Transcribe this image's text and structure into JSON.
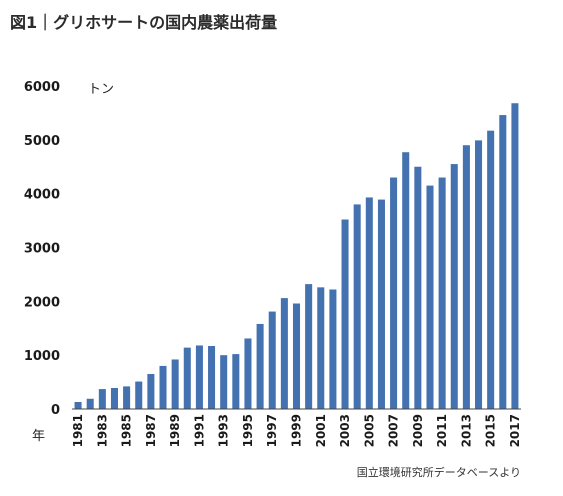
{
  "chart_data": {
    "type": "bar",
    "title": "図1｜グリホサートの国内農薬出荷量",
    "ylabel": "トン",
    "xlabel": "年",
    "source": "国立環境研究所データベースより",
    "ylim": [
      0,
      6000
    ],
    "yticks": [
      0,
      1000,
      2000,
      3000,
      4000,
      5000,
      6000
    ],
    "grid": false,
    "bar_color": "#4472b0",
    "categories": [
      "1981",
      "1982",
      "1983",
      "1984",
      "1985",
      "1986",
      "1987",
      "1988",
      "1989",
      "1990",
      "1991",
      "1992",
      "1993",
      "1994",
      "1995",
      "1996",
      "1997",
      "1998",
      "1999",
      "2000",
      "2001",
      "2002",
      "2003",
      "2004",
      "2005",
      "2006",
      "2007",
      "2008",
      "2009",
      "2010",
      "2011",
      "2012",
      "2013",
      "2014",
      "2015",
      "2016",
      "2017"
    ],
    "xtick_labels": [
      "1981",
      "",
      "1983",
      "",
      "1985",
      "",
      "1987",
      "",
      "1989",
      "",
      "1991",
      "",
      "1993",
      "",
      "1995",
      "",
      "1997",
      "",
      "1999",
      "",
      "2001",
      "",
      "2003",
      "",
      "2005",
      "",
      "2007",
      "",
      "2009",
      "",
      "2011",
      "",
      "2013",
      "",
      "2015",
      "",
      "2017"
    ],
    "values": [
      130,
      190,
      370,
      390,
      420,
      510,
      650,
      800,
      920,
      1140,
      1180,
      1170,
      1000,
      1020,
      1310,
      1580,
      1810,
      2060,
      1960,
      2320,
      2260,
      2220,
      3520,
      3800,
      3930,
      3890,
      4300,
      4770,
      4500,
      4150,
      4300,
      4550,
      4900,
      4990,
      5170,
      5460,
      5680
    ]
  }
}
